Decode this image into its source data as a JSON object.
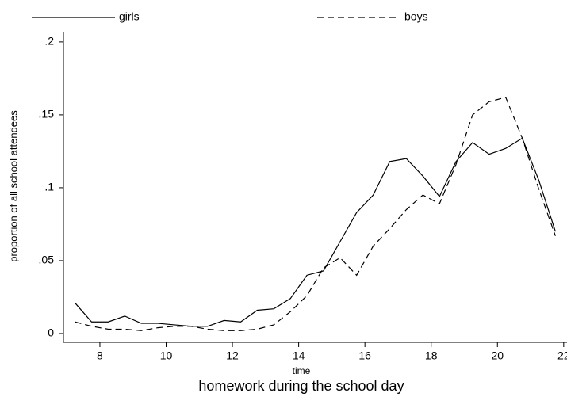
{
  "chart_data": {
    "type": "line",
    "title": "homework during the school day",
    "x_label": "time",
    "y_label": "proportion of all school attendees",
    "x": [
      7.25,
      7.75,
      8.25,
      8.75,
      9.25,
      9.75,
      10.25,
      10.75,
      11.25,
      11.75,
      12.25,
      12.75,
      13.25,
      13.75,
      14.25,
      14.75,
      15.25,
      15.75,
      16.25,
      16.75,
      17.25,
      17.75,
      18.25,
      18.75,
      19.25,
      19.75,
      20.25,
      20.75,
      21.25,
      21.75
    ],
    "series": [
      {
        "name": "girls",
        "color": "#000000",
        "dash": "solid",
        "values": [
          0.021,
          0.008,
          0.008,
          0.012,
          0.007,
          0.007,
          0.006,
          0.005,
          0.005,
          0.009,
          0.008,
          0.016,
          0.017,
          0.024,
          0.04,
          0.043,
          0.063,
          0.083,
          0.095,
          0.118,
          0.12,
          0.108,
          0.094,
          0.118,
          0.131,
          0.123,
          0.127,
          0.134,
          0.105,
          0.07
        ]
      },
      {
        "name": "boys",
        "color": "#000000",
        "dash": "dashed",
        "values": [
          0.008,
          0.005,
          0.003,
          0.003,
          0.002,
          0.004,
          0.005,
          0.005,
          0.003,
          0.002,
          0.002,
          0.003,
          0.006,
          0.015,
          0.026,
          0.045,
          0.052,
          0.04,
          0.06,
          0.072,
          0.085,
          0.095,
          0.089,
          0.116,
          0.15,
          0.159,
          0.162,
          0.134,
          0.099,
          0.067
        ]
      }
    ],
    "xlim": [
      6.9,
      22.1
    ],
    "ylim": [
      -0.006,
      0.207
    ],
    "xticks": [
      8,
      10,
      12,
      14,
      16,
      18,
      20,
      22
    ],
    "yticks": [
      0,
      {
        "value": 0.05,
        "label": ".05"
      },
      {
        "value": 0.1,
        "label": ".1"
      },
      {
        "value": 0.15,
        "label": ".15"
      },
      {
        "value": 0.2,
        "label": ".2"
      }
    ],
    "legend": "top",
    "grid": false
  }
}
